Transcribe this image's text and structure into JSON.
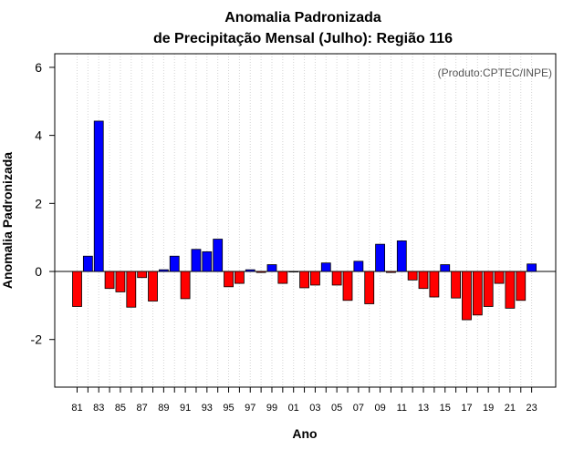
{
  "chart_data": {
    "type": "bar",
    "title_line1": "Anomalia Padronizada",
    "title_line2": "de Precipitação Mensal (Julho): Região 116",
    "annotation": "(Produto:CPTEC/INPE)",
    "xlabel": "Ano",
    "ylabel": "Anomalia Padronizada",
    "ylim": [
      -3.4,
      6.4
    ],
    "yticks": [
      -2,
      0,
      2,
      4,
      6
    ],
    "grid": "vertical dotted",
    "positive_color": "#0000ff",
    "negative_color": "#ff0000",
    "categories": [
      "81",
      "82",
      "83",
      "84",
      "85",
      "86",
      "87",
      "88",
      "89",
      "90",
      "91",
      "92",
      "93",
      "94",
      "95",
      "96",
      "97",
      "98",
      "99",
      "00",
      "01",
      "02",
      "03",
      "04",
      "05",
      "06",
      "07",
      "08",
      "09",
      "10",
      "11",
      "12",
      "13",
      "14",
      "15",
      "16",
      "17",
      "18",
      "19",
      "20",
      "21",
      "22",
      "23"
    ],
    "tick_labels": [
      "81",
      "83",
      "85",
      "87",
      "89",
      "91",
      "93",
      "95",
      "97",
      "99",
      "01",
      "03",
      "05",
      "07",
      "09",
      "11",
      "13",
      "15",
      "17",
      "19",
      "21",
      "23"
    ],
    "values": [
      -1.03,
      0.45,
      4.42,
      -0.5,
      -0.6,
      -1.05,
      -0.18,
      -0.87,
      0.05,
      0.45,
      -0.8,
      0.65,
      0.58,
      0.95,
      -0.45,
      -0.35,
      0.05,
      -0.03,
      0.2,
      -0.35,
      0.0,
      -0.48,
      -0.4,
      0.25,
      -0.4,
      -0.85,
      0.3,
      -0.95,
      0.8,
      -0.03,
      0.9,
      -0.25,
      -0.5,
      -0.75,
      0.2,
      -0.78,
      -1.42,
      -1.28,
      -1.03,
      -0.35,
      -1.08,
      -0.85,
      0.22
    ]
  }
}
